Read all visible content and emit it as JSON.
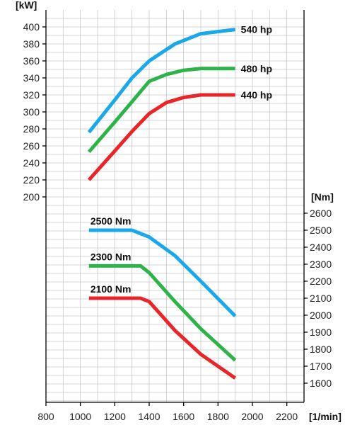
{
  "chart_data": {
    "type": "line",
    "x_unit": "[1/min]",
    "left_unit": "[kW]",
    "right_unit": "[Nm]",
    "x_ticks": [
      800,
      1000,
      1200,
      1400,
      1600,
      1800,
      2000,
      2200
    ],
    "left_ticks": [
      200,
      220,
      240,
      260,
      280,
      300,
      320,
      340,
      360,
      380,
      400
    ],
    "right_ticks": [
      1600,
      1700,
      1800,
      1900,
      2000,
      2100,
      2200,
      2300,
      2400,
      2500,
      2600
    ],
    "xlim": [
      800,
      2300
    ],
    "left_ylim": [
      200,
      400
    ],
    "right_ylim": [
      1600,
      2600
    ],
    "grid": true,
    "power_series": [
      {
        "name": "540 hp",
        "color": "#1aa8e8",
        "x": [
          1050,
          1200,
          1300,
          1400,
          1550,
          1700,
          1900
        ],
        "y": [
          276,
          314,
          340,
          360,
          380,
          392,
          397
        ]
      },
      {
        "name": "480 hp",
        "color": "#2db34a",
        "x": [
          1050,
          1200,
          1300,
          1400,
          1500,
          1600,
          1700,
          1900
        ],
        "y": [
          253,
          288,
          312,
          336,
          344,
          349,
          351,
          351
        ]
      },
      {
        "name": "440 hp",
        "color": "#e8262a",
        "x": [
          1050,
          1200,
          1300,
          1400,
          1500,
          1600,
          1700,
          1900
        ],
        "y": [
          220,
          254,
          277,
          298,
          311,
          317,
          320,
          320
        ]
      }
    ],
    "torque_series": [
      {
        "name": "2500 Nm",
        "color": "#1aa8e8",
        "x": [
          1050,
          1300,
          1400,
          1550,
          1700,
          1900
        ],
        "y": [
          2500,
          2500,
          2460,
          2350,
          2200,
          1995
        ]
      },
      {
        "name": "2300 Nm",
        "color": "#2db34a",
        "x": [
          1050,
          1350,
          1400,
          1550,
          1700,
          1900
        ],
        "y": [
          2290,
          2290,
          2250,
          2080,
          1920,
          1735
        ]
      },
      {
        "name": "2100 Nm",
        "color": "#e8262a",
        "x": [
          1050,
          1350,
          1400,
          1550,
          1700,
          1900
        ],
        "y": [
          2100,
          2100,
          2080,
          1910,
          1770,
          1630
        ]
      }
    ]
  }
}
